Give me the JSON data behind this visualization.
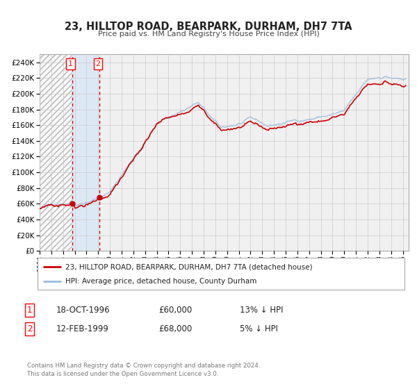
{
  "title": "23, HILLTOP ROAD, BEARPARK, DURHAM, DH7 7TA",
  "subtitle": "Price paid vs. HM Land Registry's House Price Index (HPI)",
  "legend_entry1": "23, HILLTOP ROAD, BEARPARK, DURHAM, DH7 7TA (detached house)",
  "legend_entry2": "HPI: Average price, detached house, County Durham",
  "transaction1_date": "18-OCT-1996",
  "transaction1_price": "£60,000",
  "transaction1_hpi": "13% ↓ HPI",
  "transaction1_year": 1996.79,
  "transaction1_value": 60000,
  "transaction2_date": "12-FEB-1999",
  "transaction2_price": "£68,000",
  "transaction2_hpi": "5% ↓ HPI",
  "transaction2_year": 1999.12,
  "transaction2_value": 68000,
  "hpi_color": "#99bbdd",
  "price_color": "#cc0000",
  "background_color": "#f0f0f0",
  "grid_color": "#cccccc",
  "highlight_color": "#dde8f5",
  "hatch_color": "#cccccc",
  "footer": "Contains HM Land Registry data © Crown copyright and database right 2024.\nThis data is licensed under the Open Government Licence v3.0.",
  "xmin": 1994.0,
  "xmax": 2025.5,
  "ymin": 0,
  "ymax": 250000
}
